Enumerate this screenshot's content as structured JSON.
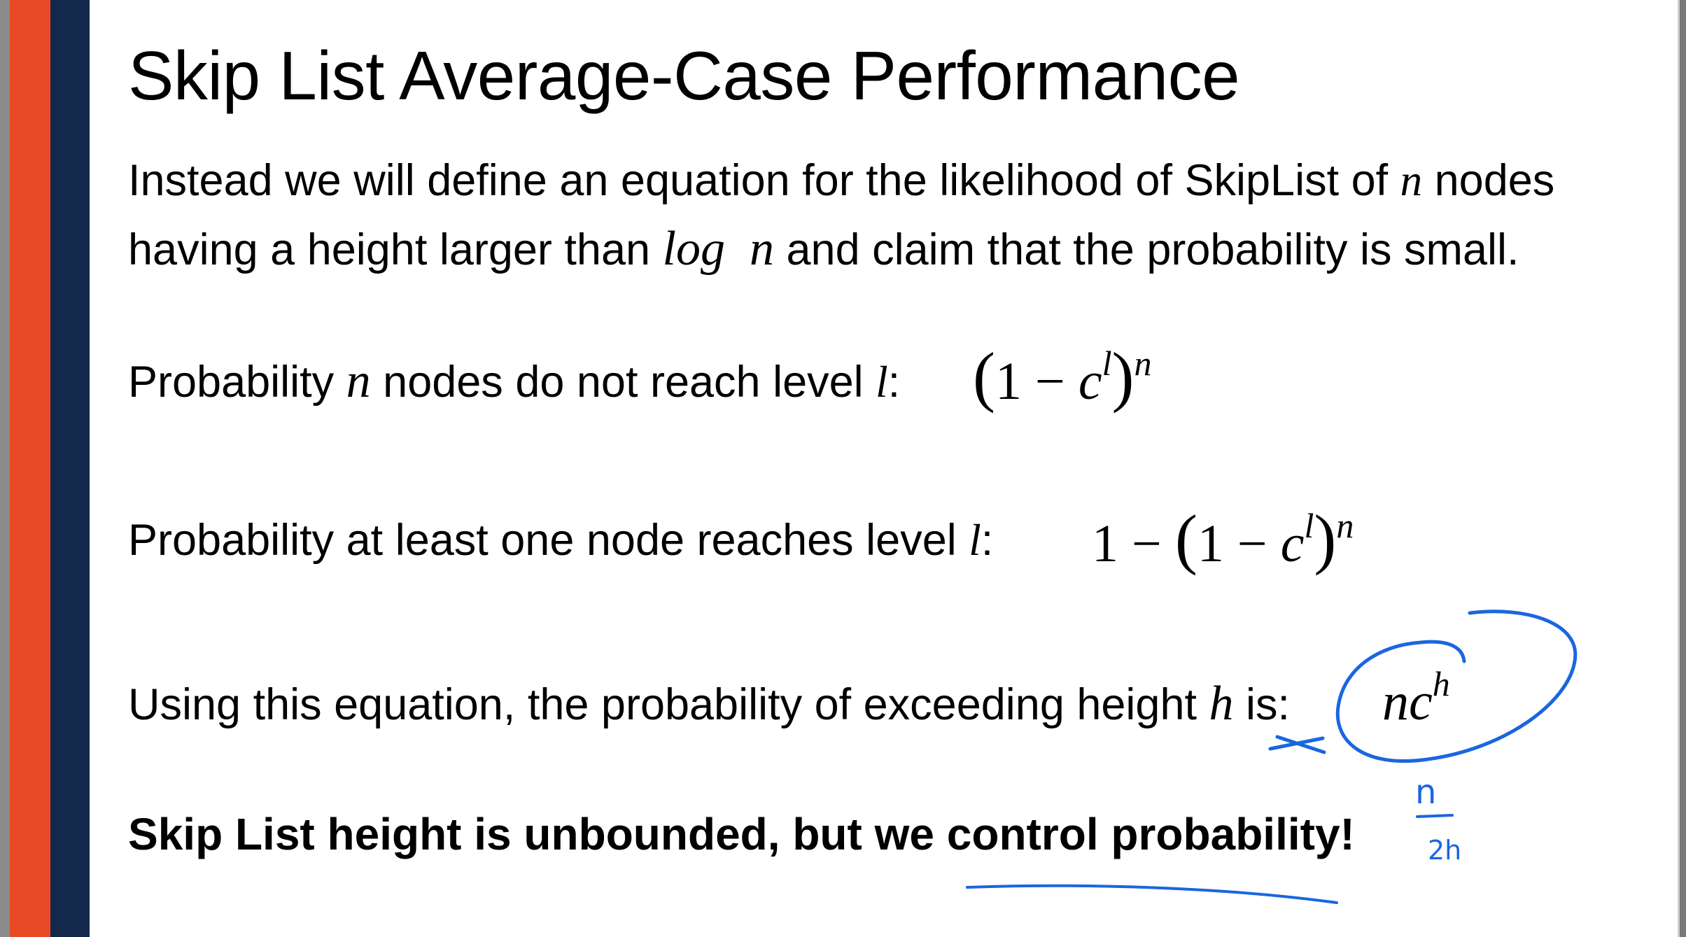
{
  "slide": {
    "title": "Skip List Average-Case Performance",
    "intro_line1_before": "Instead we will define an equation for the likelihood of SkipList of ",
    "intro_var_n": "n",
    "intro_line1_after": " nodes",
    "intro_line2_before": "having a height larger than ",
    "intro_log": "log",
    "intro_line2_n": "n",
    "intro_line2_after": " and claim that the probability is small.",
    "p1_before": "Probability ",
    "p1_n": "n",
    "p1_after": " nodes do not reach level ",
    "p1_l": "l",
    "p1_colon": ":",
    "f1_open": "(",
    "f1_one": "1 − ",
    "f1_c": "c",
    "f1_sup_l": "l",
    "f1_close": ")",
    "f1_sup_n": "n",
    "p2_before": "Probability at least one node reaches level ",
    "p2_l": "l",
    "p2_colon": ":",
    "f2_prefix": "1 − ",
    "f2_open": "(",
    "f2_one": "1 − ",
    "f2_c": "c",
    "f2_sup_l": "l",
    "f2_close": ")",
    "f2_sup_n": "n",
    "p3_before": "Using this equation, the probability of exceeding height ",
    "p3_h": "h",
    "p3_after": " is:",
    "f3_nc": "nc",
    "f3_sup_h": "h",
    "conclusion": "Skip List height is unbounded, but we control probability!"
  },
  "annotations": {
    "ink_color": "#1a66e0",
    "fraction_numerator": "n",
    "fraction_denominator": "2h"
  },
  "colors": {
    "orange_bar": "#e84a27",
    "navy_bar": "#13294b"
  }
}
